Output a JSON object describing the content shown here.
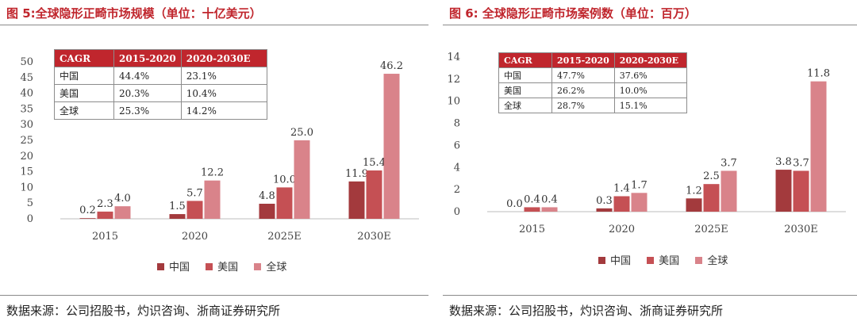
{
  "colors": {
    "china": "#a33a3d",
    "usa": "#c55054",
    "global": "#d9838a",
    "title": "#c0262d"
  },
  "figures": [
    {
      "title": "图 5:全球隐形正畸市场规模（单位：十亿美元）",
      "source": "数据来源：公司招股书，灼识咨询、浙商证券研究所",
      "legend": [
        "中国",
        "美国",
        "全球"
      ],
      "cagr_table": {
        "header": [
          "CAGR",
          "2015-2020",
          "2020-2030E"
        ],
        "rows": [
          [
            "中国",
            "44.4%",
            "23.1%"
          ],
          [
            "美国",
            "20.3%",
            "10.4%"
          ],
          [
            "全球",
            "25.3%",
            "14.2%"
          ]
        ]
      }
    },
    {
      "title": "图 6:  全球隐形正畸市场案例数（单位：百万）",
      "source": "数据来源：公司招股书，灼识咨询、浙商证券研究所",
      "legend": [
        "中国",
        "美国",
        "全球"
      ],
      "cagr_table": {
        "header": [
          "CAGR",
          "2015-2020",
          "2020-2030E"
        ],
        "rows": [
          [
            "中国",
            "47.7%",
            "37.6%"
          ],
          [
            "美国",
            "26.2%",
            "10.0%"
          ],
          [
            "全球",
            "28.7%",
            "15.1%"
          ]
        ]
      }
    }
  ],
  "chart_data": [
    {
      "type": "bar",
      "categories": [
        "2015",
        "2020",
        "2025E",
        "2030E"
      ],
      "series": [
        {
          "name": "中国",
          "values": [
            0.2,
            1.5,
            4.8,
            11.9
          ]
        },
        {
          "name": "美国",
          "values": [
            2.3,
            5.7,
            10.0,
            15.4
          ]
        },
        {
          "name": "全球",
          "values": [
            4.0,
            12.2,
            25.0,
            46.2
          ]
        }
      ],
      "labels": [
        [
          "0.2",
          "1.5",
          "4.8",
          "11.9"
        ],
        [
          "2.3",
          "5.7",
          "10.0",
          "15.4"
        ],
        [
          "4.0",
          "12.2",
          "25.0",
          "46.2"
        ]
      ],
      "yticks": [
        0,
        5,
        10,
        15,
        20,
        25,
        30,
        35,
        40,
        45,
        50
      ],
      "ylim": [
        0,
        50
      ],
      "grid": false,
      "legend_position": "bottom"
    },
    {
      "type": "bar",
      "categories": [
        "2015",
        "2020",
        "2025E",
        "2030E"
      ],
      "series": [
        {
          "name": "中国",
          "values": [
            0.0,
            0.3,
            1.2,
            3.8
          ]
        },
        {
          "name": "美国",
          "values": [
            0.4,
            1.4,
            2.5,
            3.7
          ]
        },
        {
          "name": "全球",
          "values": [
            0.4,
            1.7,
            3.7,
            11.8
          ]
        }
      ],
      "labels": [
        [
          "0.0",
          "0.3",
          "1.2",
          "3.8"
        ],
        [
          "0.4",
          "1.4",
          "2.5",
          "3.7"
        ],
        [
          "0.4",
          "1.7",
          "3.7",
          "11.8"
        ]
      ],
      "yticks": [
        0,
        2,
        4,
        6,
        8,
        10,
        12,
        14
      ],
      "ylim": [
        0,
        14
      ],
      "grid": false,
      "legend_position": "bottom"
    }
  ]
}
